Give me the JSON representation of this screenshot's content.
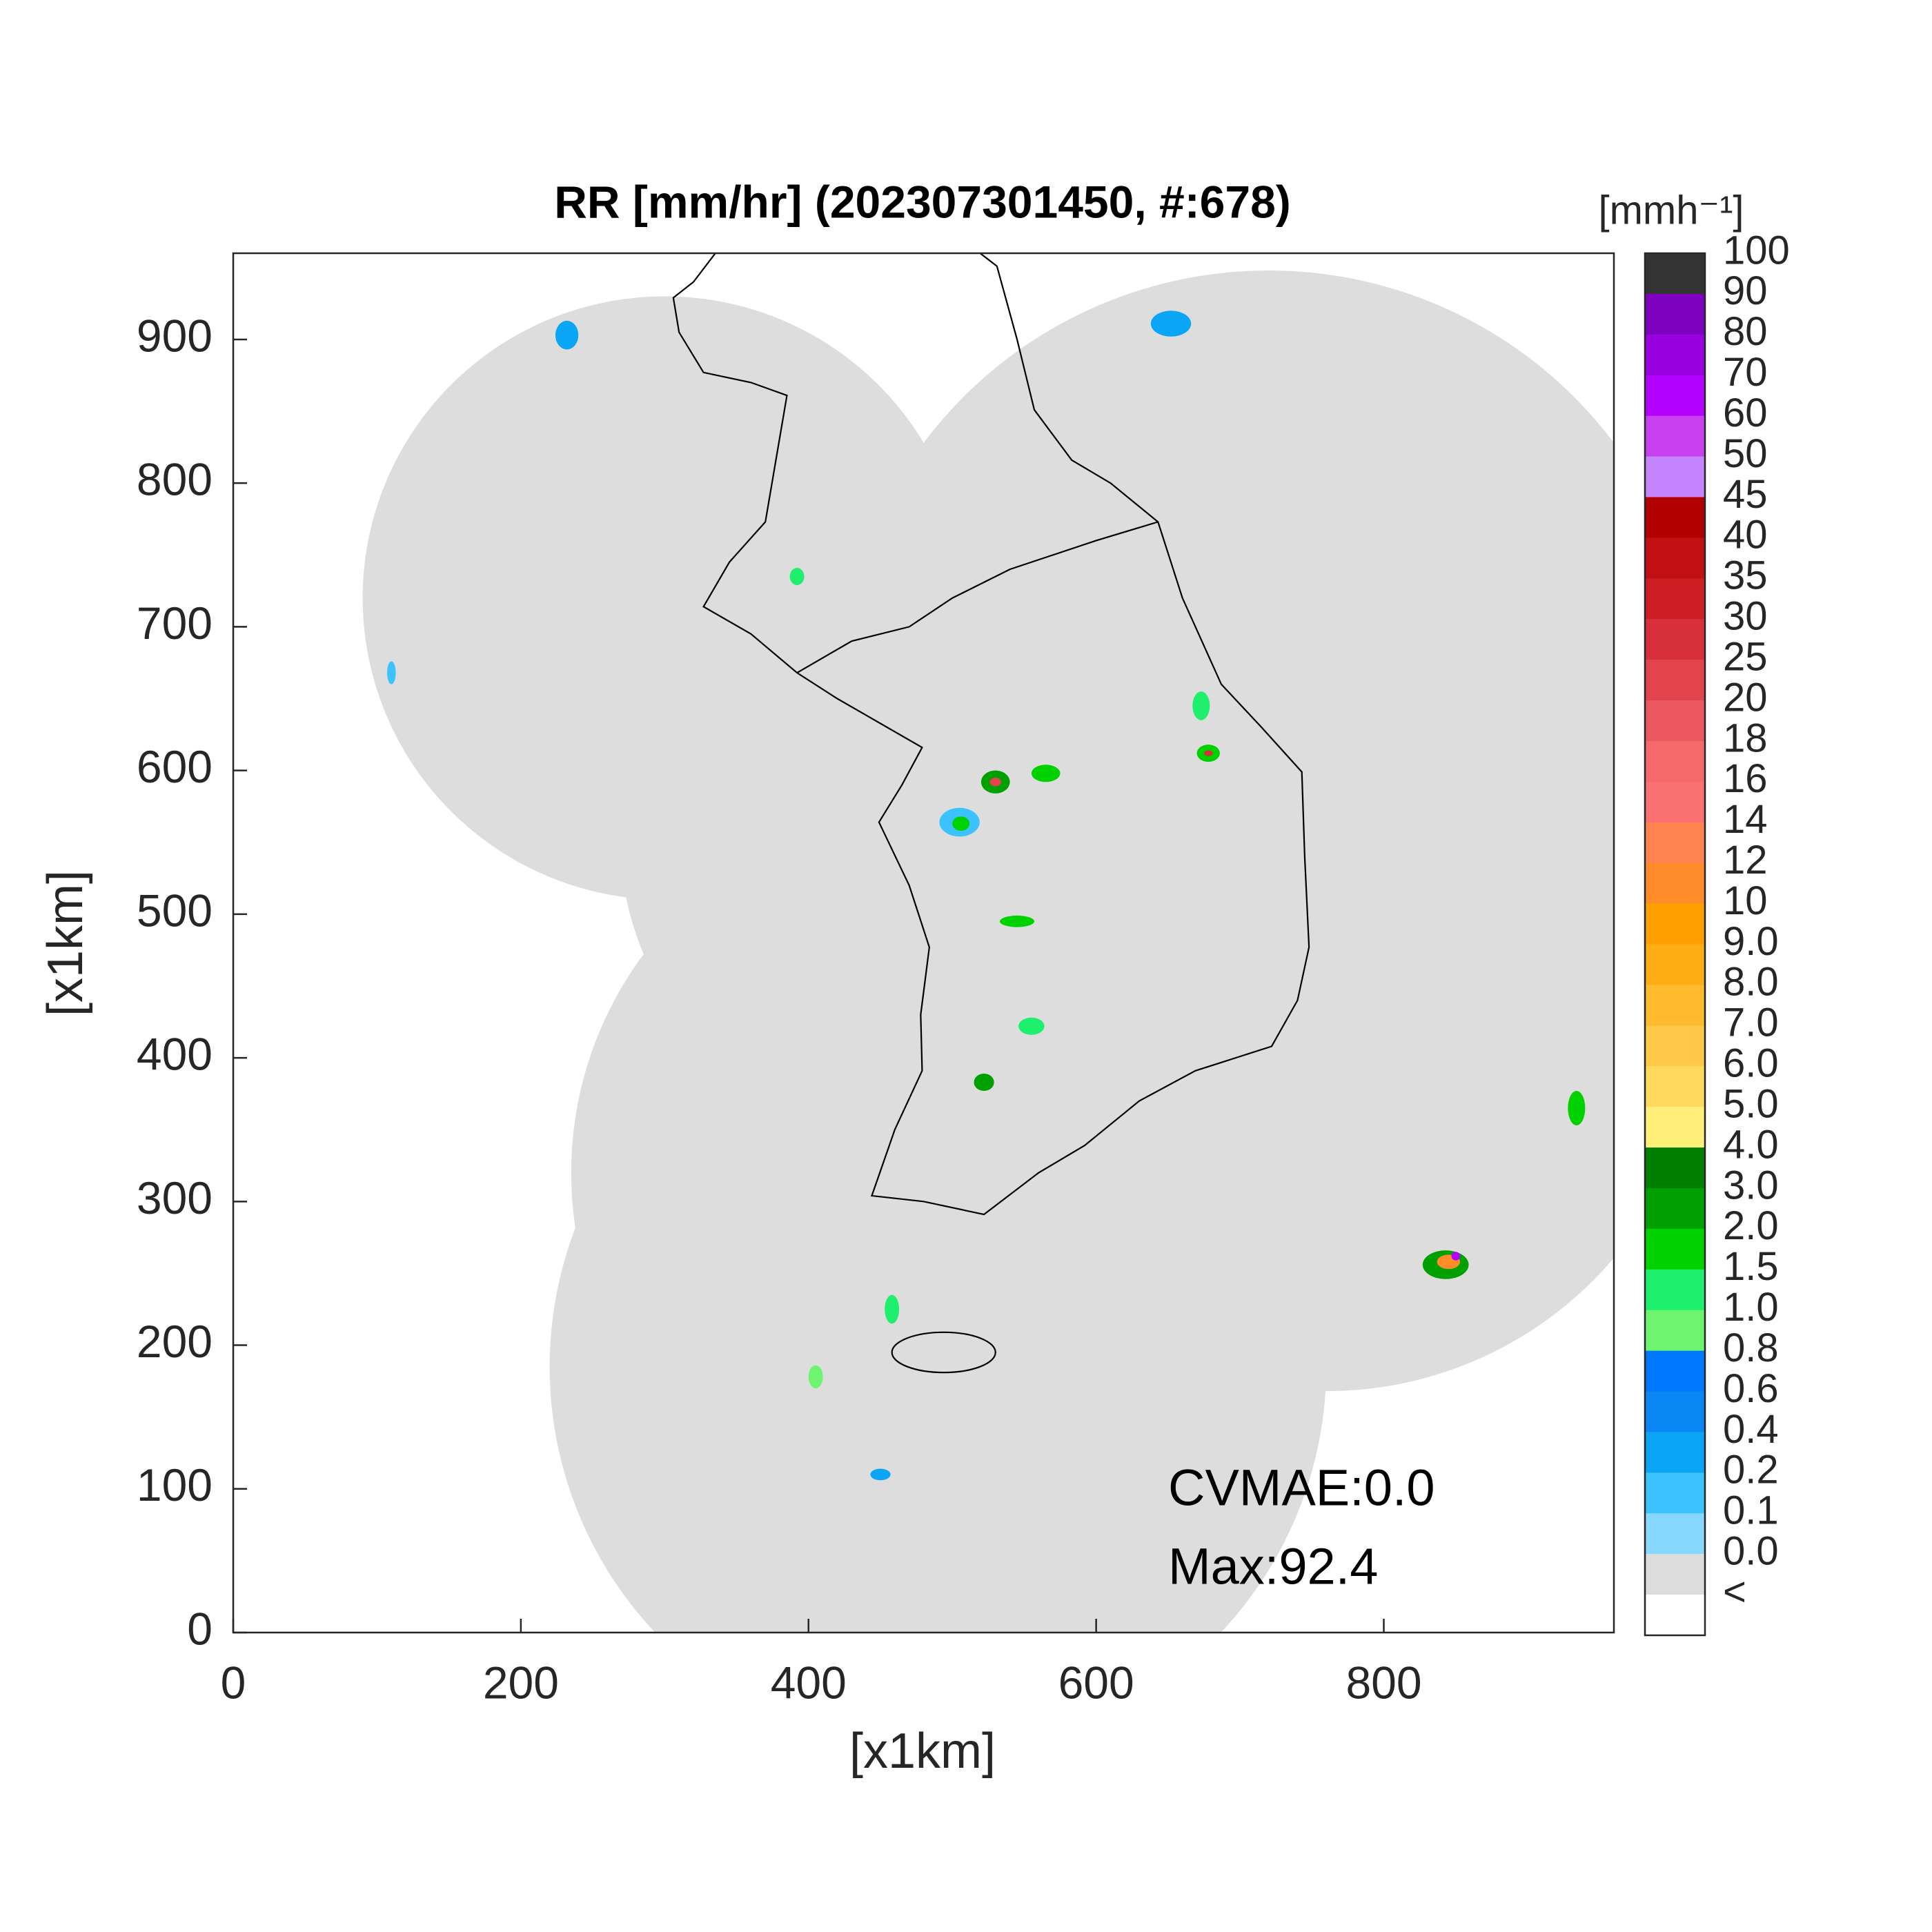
{
  "chart_data": {
    "type": "map",
    "title": "RR [mm/hr] (202307301450, #:678)",
    "xlabel": "[x1km]",
    "ylabel": "[x1km]",
    "xlim": [
      0,
      960
    ],
    "ylim": [
      0,
      960
    ],
    "xticks": [
      0,
      200,
      400,
      600,
      800
    ],
    "yticks": [
      0,
      100,
      200,
      300,
      400,
      500,
      600,
      700,
      800,
      900
    ],
    "annotations": [
      "CVMAE:0.0",
      "Max:92.4"
    ],
    "colorbar": {
      "label": "[mmh⁻¹]",
      "ticks": [
        100,
        90,
        80,
        70,
        60,
        50,
        45,
        40,
        35,
        30,
        25,
        20,
        18,
        16,
        14,
        12,
        10,
        {
          "value": 9,
          "label": "9.0"
        },
        {
          "value": 8,
          "label": "8.0"
        },
        {
          "value": 7,
          "label": "7.0"
        },
        {
          "value": 6,
          "label": "6.0"
        },
        {
          "value": 5,
          "label": "5.0"
        },
        {
          "value": 4,
          "label": "4.0"
        },
        {
          "value": 3,
          "label": "3.0"
        },
        {
          "value": 2,
          "label": "2.0"
        },
        1.5,
        {
          "value": 1,
          "label": "1.0"
        },
        0.8,
        0.6,
        0.4,
        0.2,
        0.1,
        {
          "value": 0,
          "label": "0.0"
        },
        "<"
      ],
      "colors": [
        "#333333",
        "#7f00bf",
        "#9900e0",
        "#b300ff",
        "#c840f0",
        "#c485ff",
        "#b20000",
        "#c20f14",
        "#cd1e24",
        "#d7303a",
        "#e2444e",
        "#ec5860",
        "#f5696b",
        "#fb7070",
        "#ff8450",
        "#ff8c28",
        "#ffa000",
        "#ffad14",
        "#ffbb2d",
        "#ffc846",
        "#ffd95e",
        "#fff07a",
        "#007f00",
        "#00a000",
        "#00d200",
        "#1ef06e",
        "#6ef46e",
        "#0077ff",
        "#0a87f5",
        "#0aa5f5",
        "#3cc3ff",
        "#87d7ff",
        "#dcdcdc",
        "#ffffff"
      ]
    }
  }
}
